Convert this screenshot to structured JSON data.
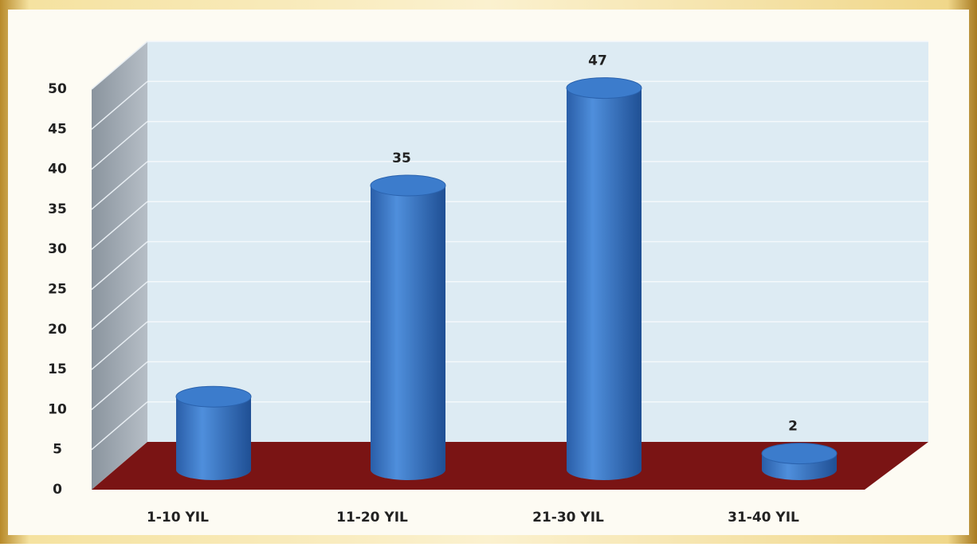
{
  "chart_data": {
    "type": "bar3d",
    "categories": [
      "1-10  YIL",
      "11-20 YIL",
      "21-30 YIL",
      "31-40 YIL"
    ],
    "values": [
      9,
      35,
      47,
      2
    ],
    "value_labels": [
      null,
      "35",
      "47",
      "2"
    ],
    "color": "#2f6fbf",
    "ylim": [
      0,
      50
    ],
    "yticks": [
      0,
      5,
      10,
      15,
      20,
      25,
      30,
      35,
      40,
      45,
      50
    ],
    "grid": true
  }
}
